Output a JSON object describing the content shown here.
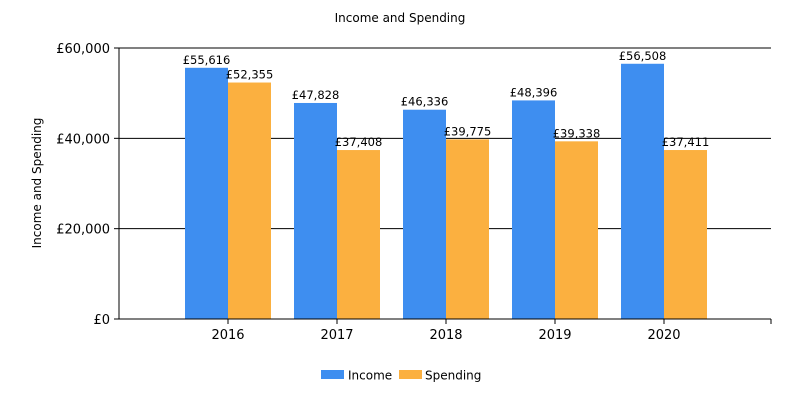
{
  "chart_data": {
    "type": "bar",
    "title": "Income and Spending",
    "xlabel": "",
    "ylabel": "Income and Spending",
    "categories": [
      "2016",
      "2017",
      "2018",
      "2019",
      "2020"
    ],
    "series": [
      {
        "name": "Income",
        "color": "#3e8ef0",
        "values": [
          55616,
          47828,
          46336,
          48396,
          56508
        ],
        "labels": [
          "£55,616",
          "£47,828",
          "£46,336",
          "£48,396",
          "£56,508"
        ]
      },
      {
        "name": "Spending",
        "color": "#fbb040",
        "values": [
          52355,
          37408,
          39775,
          39338,
          37411
        ],
        "labels": [
          "£52,355",
          "£37,408",
          "£39,775",
          "£39,338",
          "£37,411"
        ]
      }
    ],
    "ylim": [
      0,
      60000
    ],
    "yticks": [
      0,
      20000,
      40000,
      60000
    ],
    "ytick_labels": [
      "£0",
      "£20,000",
      "£40,000",
      "£60,000"
    ],
    "grid": true,
    "legend_position": "bottom-center"
  }
}
